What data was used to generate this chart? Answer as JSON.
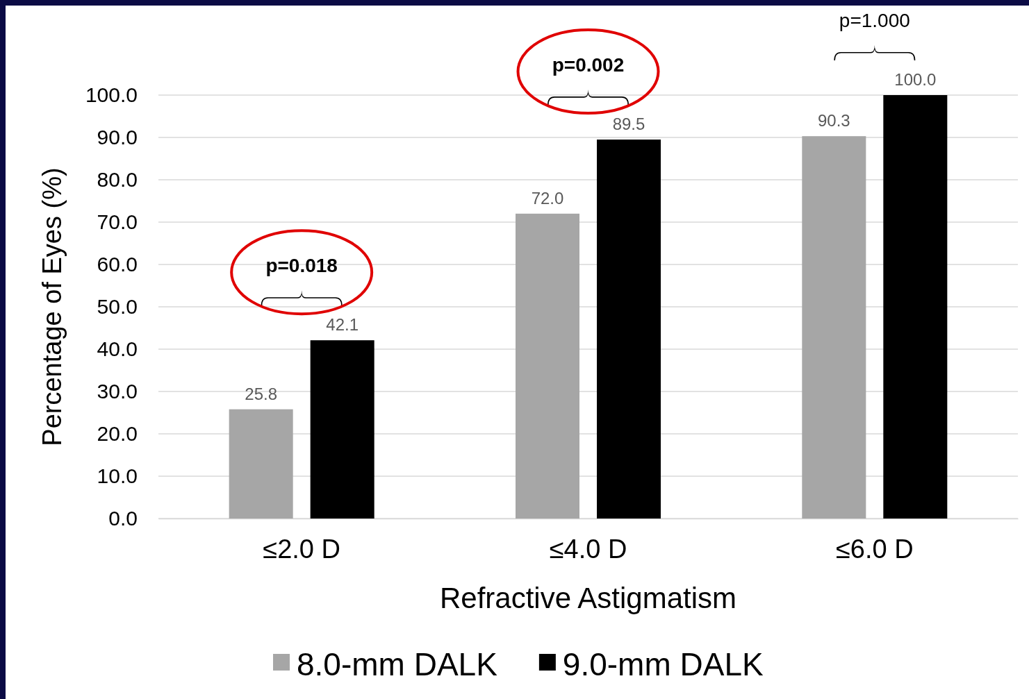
{
  "chart_data": {
    "type": "bar",
    "xlabel": "Refractive Astigmatism",
    "ylabel": "Percentage of Eyes (%)",
    "categories": [
      "≤2.0 D",
      "≤4.0 D",
      "≤6.0 D"
    ],
    "series": [
      {
        "name": "8.0-mm DALK",
        "color": "#a6a6a6",
        "values": [
          25.8,
          72.0,
          90.3
        ]
      },
      {
        "name": "9.0-mm DALK",
        "color": "#000000",
        "values": [
          42.1,
          89.5,
          100.0
        ]
      }
    ],
    "value_labels": [
      [
        "25.8",
        "72.0",
        "90.3"
      ],
      [
        "42.1",
        "89.5",
        "100.0"
      ]
    ],
    "ylim": [
      0,
      100
    ],
    "yticks": [
      {
        "value": 0,
        "label": "0.0"
      },
      {
        "value": 10,
        "label": "10.0"
      },
      {
        "value": 20,
        "label": "20.0"
      },
      {
        "value": 30,
        "label": "30.0"
      },
      {
        "value": 40,
        "label": "40.0"
      },
      {
        "value": 50,
        "label": "50.0"
      },
      {
        "value": 60,
        "label": "60.0"
      },
      {
        "value": 70,
        "label": "70.0"
      },
      {
        "value": 80,
        "label": "80.0"
      },
      {
        "value": 90,
        "label": "90.0"
      },
      {
        "value": 100,
        "label": "100.0"
      }
    ],
    "grid": "y",
    "legend": "bottom",
    "annotations": [
      "p=0.018",
      "p=0.002",
      "p=1.000"
    ]
  }
}
